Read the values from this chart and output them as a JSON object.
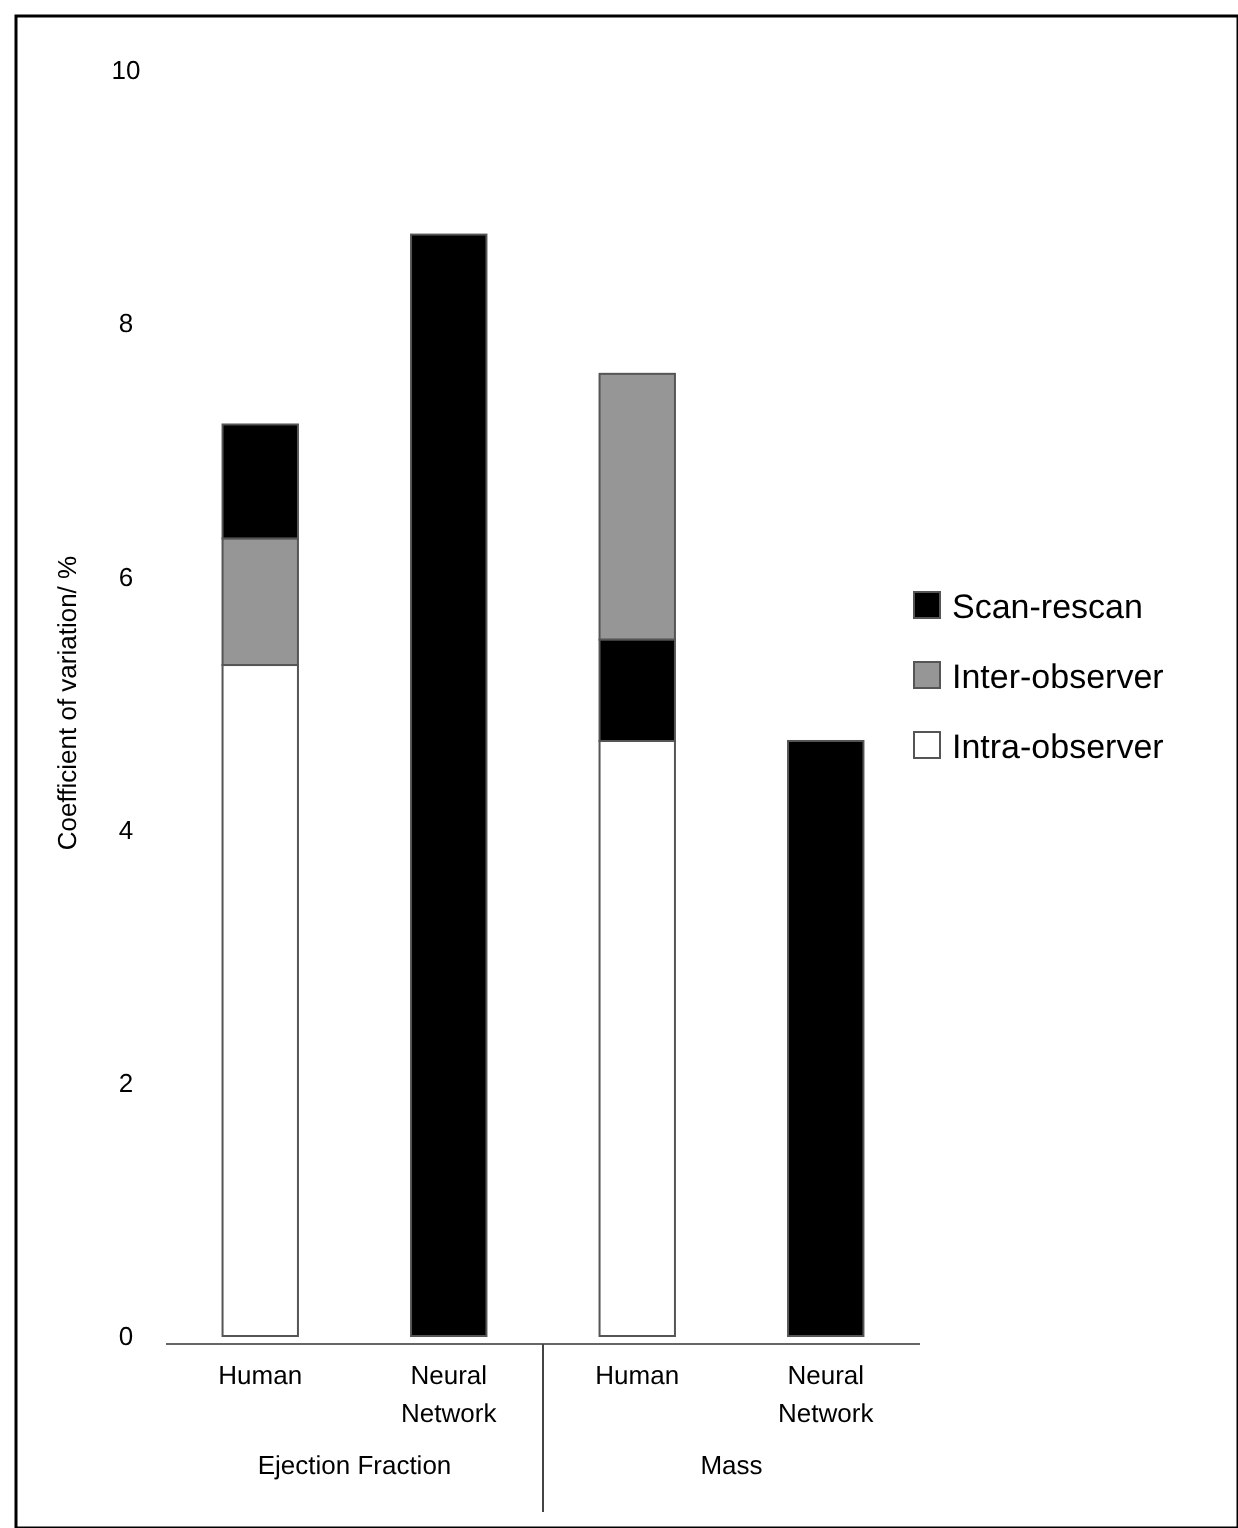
{
  "chart_data": {
    "type": "bar",
    "ylabel": "Coefficient of variation/ %",
    "categories": [
      "Human",
      "Neural Network",
      "Human",
      "Neural Network"
    ],
    "series": [
      {
        "name": "Intra-observer",
        "color": "#ffffff",
        "values": [
          5.3,
          null,
          4.7,
          null
        ]
      },
      {
        "name": "Inter-observer",
        "color": "#969696",
        "values": [
          1.0,
          null,
          2.1,
          null
        ],
        "base": [
          5.3,
          null,
          5.5,
          null
        ]
      },
      {
        "name": "Scan-rescan",
        "color": "#000000",
        "values": [
          0.9,
          8.7,
          0.8,
          4.7
        ],
        "base": [
          6.3,
          0,
          4.7,
          0
        ]
      }
    ],
    "annotations": [
      "Ejection Fraction",
      "Mass"
    ],
    "stacked": true,
    "ylim": [
      0,
      10
    ],
    "yticks": [
      0,
      2,
      4,
      6,
      8,
      10
    ],
    "grid": false,
    "legend": "right"
  }
}
